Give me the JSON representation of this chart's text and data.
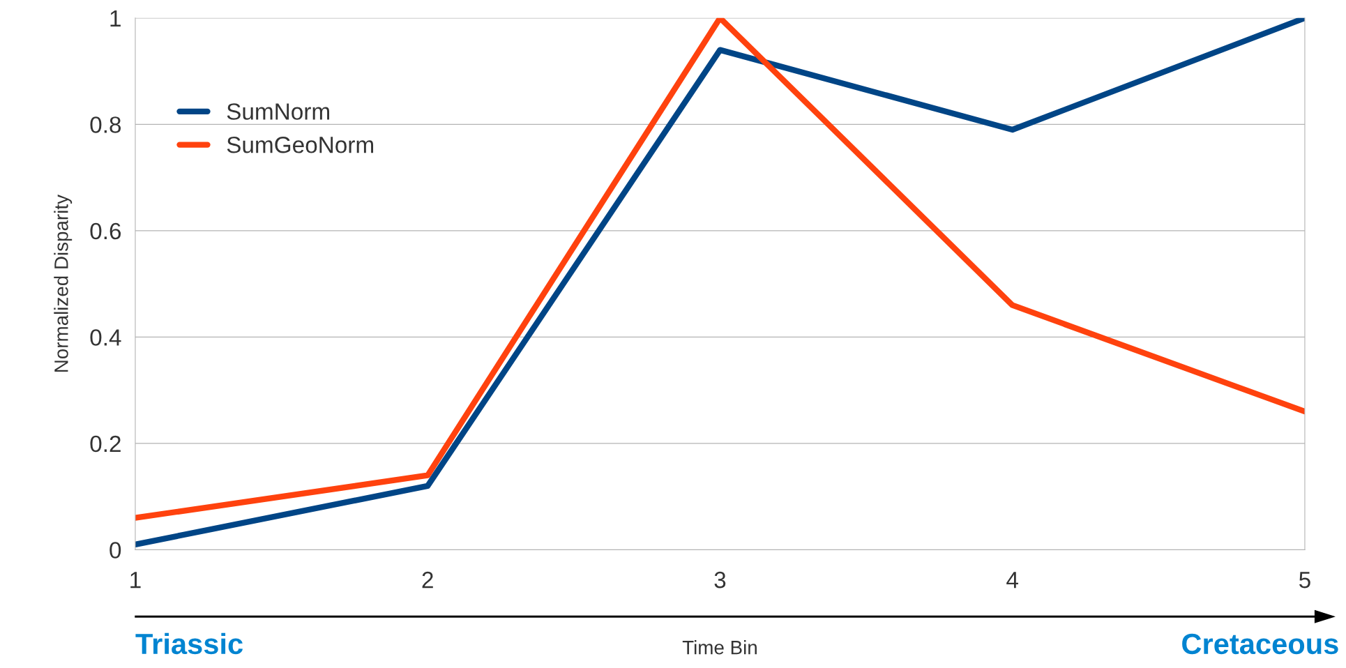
{
  "chart_data": {
    "type": "line",
    "xlabel": "Time Bin",
    "ylabel": "Normalized Disparity",
    "x": [
      1,
      2,
      3,
      4,
      5
    ],
    "series": [
      {
        "name": "SumNorm",
        "color": "#004586",
        "values": [
          0.01,
          0.12,
          0.94,
          0.79,
          1.0
        ]
      },
      {
        "name": "SumGeoNorm",
        "color": "#ff420e",
        "values": [
          0.06,
          0.14,
          1.0,
          0.46,
          0.26
        ]
      }
    ],
    "xlim": [
      1,
      5
    ],
    "xticks": [
      1,
      2,
      3,
      4,
      5
    ],
    "ylim": [
      0,
      1
    ],
    "yticks": [
      0,
      0.2,
      0.4,
      0.6,
      0.8,
      1
    ],
    "grid": "y",
    "legend": "top left",
    "marker": "none",
    "line_style": "solid",
    "annotations": [
      "Triassic",
      "Cretaceous"
    ]
  }
}
